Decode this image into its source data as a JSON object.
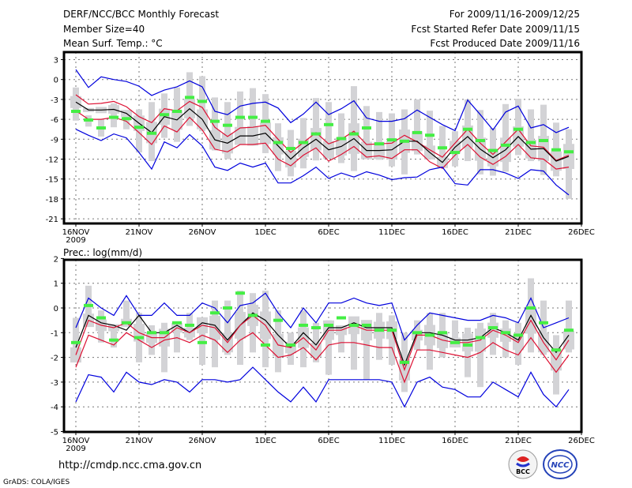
{
  "header": {
    "title": "DERF/NCC/BCC Monthly Forecast",
    "member_size": "Member Size=40",
    "variable": "Mean Surf. Temp.: °C",
    "period": "For 2009/11/16-2009/12/25",
    "started": "Fcst Started Refer Date 2009/11/15",
    "produced": "Fcst Produced Date 2009/11/16"
  },
  "footer": {
    "url": "http://cmdp.ncc.cma.gov.cn",
    "credit": "GrADS: COLA/IGES",
    "logo_left": "BCC",
    "logo_right": "NCC"
  },
  "colors": {
    "max_min": "#0000dd",
    "spread": "#dd1133",
    "mean": "#000000",
    "obs": "#44ee44",
    "box": "#d3d3d6",
    "grid": "#777777"
  },
  "chart_data": [
    {
      "type": "line",
      "title": "Mean Surf. Temp.: °C",
      "xlabel_year": "2009",
      "x_ticks": [
        "16NOV",
        "21NOV",
        "26NOV",
        "1DEC",
        "6DEC",
        "11DEC",
        "16DEC",
        "21DEC",
        "26DEC"
      ],
      "x_range_days": [
        0,
        40
      ],
      "y_ticks": [
        3,
        0,
        -3,
        -6,
        -9,
        -12,
        -15,
        -18,
        -21
      ],
      "ylim": [
        -22,
        4
      ],
      "grid": true,
      "series": [
        {
          "name": "max",
          "color": "blue",
          "values": [
            1.5,
            -1.2,
            0.4,
            0.0,
            -0.3,
            -1.0,
            -2.4,
            -1.6,
            -1.1,
            -0.2,
            -1.1,
            -4.8,
            -5.3,
            -4.0,
            -3.6,
            -3.4,
            -4.3,
            -6.5,
            -5.2,
            -3.4,
            -5.3,
            -4.4,
            -3.2,
            -5.8,
            -6.3,
            -6.3,
            -5.9,
            -4.6,
            -5.7,
            -6.8,
            -7.7,
            -3.1,
            -5.3,
            -7.6,
            -4.9,
            -4.0,
            -7.3,
            -6.8,
            -8.0,
            -7.2
          ]
        },
        {
          "name": "upper",
          "color": "red",
          "values": [
            -2.3,
            -3.7,
            -3.6,
            -3.3,
            -4.1,
            -5.6,
            -6.5,
            -4.4,
            -4.7,
            -3.3,
            -4.2,
            -7.2,
            -8.6,
            -7.3,
            -7.2,
            -6.9,
            -9.0,
            -11.0,
            -9.5,
            -8.0,
            -9.7,
            -9.0,
            -7.8,
            -9.8,
            -9.7,
            -9.6,
            -8.4,
            -9.4,
            -10.6,
            -11.7,
            -9.6,
            -7.5,
            -9.6,
            -11.3,
            -9.4,
            -7.5,
            -10.0,
            -10.2,
            -12.2,
            -11.4
          ]
        },
        {
          "name": "mean",
          "color": "black",
          "values": [
            -3.4,
            -4.6,
            -4.6,
            -4.5,
            -5.1,
            -6.6,
            -8.0,
            -5.6,
            -6.1,
            -4.4,
            -6.0,
            -9.1,
            -9.6,
            -8.5,
            -8.5,
            -8.1,
            -10.0,
            -12.0,
            -10.3,
            -9.0,
            -10.6,
            -10.1,
            -8.9,
            -10.7,
            -10.7,
            -10.6,
            -9.3,
            -9.3,
            -11.0,
            -12.5,
            -10.2,
            -8.6,
            -10.5,
            -11.8,
            -10.6,
            -8.6,
            -10.5,
            -10.4,
            -12.3,
            -11.6
          ]
        },
        {
          "name": "lower",
          "color": "red",
          "values": [
            -4.7,
            -6.0,
            -6.0,
            -5.7,
            -6.3,
            -8.0,
            -9.8,
            -7.0,
            -7.9,
            -5.7,
            -7.6,
            -10.5,
            -10.9,
            -9.8,
            -9.8,
            -9.6,
            -12.0,
            -13.0,
            -11.4,
            -10.3,
            -12.3,
            -11.3,
            -10.1,
            -11.7,
            -11.5,
            -11.9,
            -10.6,
            -10.6,
            -12.4,
            -13.4,
            -11.4,
            -9.8,
            -11.7,
            -12.8,
            -11.6,
            -9.8,
            -11.8,
            -12.0,
            -13.5,
            -13.2
          ]
        },
        {
          "name": "min",
          "color": "blue",
          "values": [
            -7.5,
            -8.4,
            -9.2,
            -8.2,
            -8.8,
            -11.0,
            -13.5,
            -9.4,
            -10.3,
            -8.3,
            -10.0,
            -13.2,
            -13.7,
            -12.6,
            -13.2,
            -12.6,
            -15.6,
            -15.6,
            -14.5,
            -13.2,
            -14.9,
            -14.1,
            -14.7,
            -13.9,
            -14.4,
            -15.1,
            -14.8,
            -14.7,
            -13.6,
            -13.2,
            -15.7,
            -15.9,
            -13.6,
            -13.6,
            -14.1,
            -14.9,
            -13.6,
            -13.8,
            -15.9,
            -17.4
          ]
        },
        {
          "name": "observed",
          "color": "green",
          "values": [
            -4.8,
            -6.1,
            -7.3,
            -5.7,
            -5.9,
            -7.2,
            -8.1,
            -5.3,
            -4.8,
            -2.7,
            -3.3,
            -6.3,
            -6.9,
            -5.7,
            -5.7,
            -6.3,
            -9.5,
            -10.4,
            -9.5,
            -8.2,
            -6.8,
            -8.9,
            -8.2,
            -7.3,
            -9.7,
            -9.1,
            -9.3,
            -8.0,
            -8.4,
            -10.3,
            -11.0,
            -7.5,
            -9.2,
            -10.7,
            -9.9,
            -7.5,
            -9.5,
            -9.2,
            -10.6,
            -10.9
          ]
        },
        {
          "name": "box_low",
          "color": "gray",
          "values": [
            -6.2,
            -7.1,
            -8.6,
            -7.2,
            -7.5,
            -11.0,
            -12.3,
            -8.8,
            -9.4,
            -7.0,
            -7.8,
            -10.7,
            -12.0,
            -9.3,
            -9.5,
            -11.1,
            -13.8,
            -14.6,
            -13.4,
            -12.2,
            -10.8,
            -12.6,
            -13.8,
            -11.3,
            -12.1,
            -13.1,
            -14.3,
            -11.3,
            -10.5,
            -11.7,
            -13.1,
            -12.3,
            -14.3,
            -14.5,
            -13.9,
            -11.4,
            -12.3,
            -14.4,
            -14.6,
            -18.0
          ]
        },
        {
          "name": "box_high",
          "color": "gray",
          "values": [
            -1.2,
            -5.4,
            -6.0,
            -3.6,
            -4.6,
            -4.5,
            -3.4,
            -2.1,
            -1.2,
            1.1,
            0.5,
            -2.7,
            -3.4,
            -1.8,
            -1.3,
            -2.2,
            -6.6,
            -7.6,
            -5.8,
            -2.8,
            -3.4,
            -5.1,
            -1.0,
            -4.0,
            -4.9,
            -5.1,
            -4.5,
            -3.0,
            -4.7,
            -7.0,
            -7.8,
            -3.0,
            -4.6,
            -7.3,
            -3.7,
            -2.9,
            -4.5,
            -3.8,
            -6.5,
            -7.5
          ]
        }
      ]
    },
    {
      "type": "line",
      "title": "Prec.: log(mm/d)",
      "xlabel_year": "2009",
      "x_ticks": [
        "16NOV",
        "21NOV",
        "26NOV",
        "1DEC",
        "6DEC",
        "11DEC",
        "16DEC",
        "21DEC",
        "26DEC"
      ],
      "x_range_days": [
        0,
        40
      ],
      "y_ticks": [
        2,
        1,
        0,
        -1,
        -2,
        -3,
        -4,
        -5
      ],
      "ylim": [
        -5,
        2
      ],
      "grid": true,
      "series": [
        {
          "name": "max",
          "color": "blue",
          "values": [
            -0.8,
            0.4,
            0.0,
            -0.3,
            0.5,
            -0.3,
            -0.3,
            0.2,
            -0.3,
            -0.3,
            0.2,
            0.0,
            -0.6,
            0.1,
            0.2,
            0.6,
            -0.2,
            -0.8,
            0.0,
            -0.6,
            0.2,
            0.2,
            0.4,
            0.2,
            0.1,
            0.2,
            -1.3,
            -0.7,
            -0.2,
            -0.3,
            -0.4,
            -0.5,
            -0.5,
            -0.3,
            -0.4,
            -0.6,
            0.4,
            -0.8,
            -0.6,
            -0.4
          ]
        },
        {
          "name": "upper",
          "color": "black",
          "values": [
            -1.6,
            -0.3,
            -0.6,
            -0.7,
            -0.9,
            -0.3,
            -1.0,
            -1.0,
            -0.7,
            -1.0,
            -0.6,
            -0.7,
            -1.3,
            -0.7,
            -0.2,
            -0.5,
            -1.1,
            -1.6,
            -1.0,
            -1.5,
            -0.8,
            -0.8,
            -0.6,
            -0.8,
            -0.8,
            -0.8,
            -2.3,
            -1.0,
            -1.0,
            -1.1,
            -1.3,
            -1.3,
            -1.2,
            -0.8,
            -1.0,
            -1.3,
            -0.3,
            -1.2,
            -1.8,
            -1.1
          ]
        },
        {
          "name": "mean",
          "color": "red",
          "values": [
            -1.9,
            -0.5,
            -0.7,
            -0.8,
            -0.6,
            -1.0,
            -1.2,
            -1.2,
            -0.8,
            -1.0,
            -0.7,
            -0.8,
            -1.4,
            -0.7,
            -0.3,
            -0.7,
            -1.5,
            -1.6,
            -1.2,
            -1.7,
            -0.9,
            -0.9,
            -0.7,
            -0.9,
            -0.9,
            -0.9,
            -2.5,
            -1.1,
            -1.1,
            -1.3,
            -1.4,
            -1.4,
            -1.3,
            -0.9,
            -1.1,
            -1.4,
            -0.5,
            -1.4,
            -2.1,
            -1.3
          ]
        },
        {
          "name": "lower",
          "color": "red",
          "values": [
            -2.4,
            -1.1,
            -1.3,
            -1.5,
            -1.0,
            -1.3,
            -1.6,
            -1.3,
            -1.2,
            -1.4,
            -1.1,
            -1.3,
            -1.8,
            -1.3,
            -1.0,
            -1.5,
            -2.0,
            -1.9,
            -1.6,
            -2.1,
            -1.5,
            -1.4,
            -1.4,
            -1.5,
            -1.6,
            -1.6,
            -3.0,
            -1.7,
            -1.7,
            -1.8,
            -1.9,
            -2.0,
            -1.8,
            -1.4,
            -1.7,
            -1.9,
            -1.2,
            -1.9,
            -2.6,
            -1.9
          ]
        },
        {
          "name": "min",
          "color": "blue",
          "values": [
            -3.8,
            -2.7,
            -2.8,
            -3.4,
            -2.6,
            -3.0,
            -3.1,
            -2.9,
            -3.0,
            -3.4,
            -2.9,
            -2.9,
            -3.0,
            -2.9,
            -2.4,
            -2.9,
            -3.4,
            -3.8,
            -3.2,
            -3.8,
            -2.9,
            -2.9,
            -2.9,
            -2.9,
            -2.9,
            -3.0,
            -4.0,
            -3.0,
            -2.8,
            -3.2,
            -3.3,
            -3.6,
            -3.6,
            -3.0,
            -3.3,
            -3.6,
            -2.6,
            -3.5,
            -4.0,
            -3.3
          ]
        },
        {
          "name": "observed",
          "color": "green",
          "values": [
            -1.4,
            0.1,
            -0.4,
            -1.3,
            -0.6,
            -1.2,
            -1.0,
            -1.0,
            -0.6,
            -0.7,
            -1.4,
            -0.2,
            0.0,
            0.6,
            -0.3,
            -1.5,
            -0.5,
            -1.5,
            -0.7,
            -0.8,
            -0.7,
            -0.4,
            -0.7,
            -0.7,
            -0.9,
            -0.9,
            -2.2,
            -1.0,
            -1.1,
            -1.0,
            -1.4,
            -1.5,
            -1.2,
            -0.8,
            -1.0,
            -1.1,
            0.0,
            -0.6,
            -1.7,
            -0.9
          ]
        },
        {
          "name": "box_low",
          "color": "gray",
          "values": [
            -2.1,
            -0.6,
            -1.4,
            -1.6,
            -0.6,
            -2.2,
            -1.9,
            -2.6,
            -1.8,
            -1.3,
            -2.3,
            -2.4,
            -1.9,
            -2.3,
            -1.8,
            -2.4,
            -2.6,
            -2.3,
            -2.4,
            -2.2,
            -2.7,
            -1.8,
            -2.5,
            -2.9,
            -2.1,
            -2.3,
            -3.4,
            -1.7,
            -2.5,
            -2.0,
            -1.6,
            -2.8,
            -3.2,
            -1.9,
            -2.0,
            -2.3,
            -1.8,
            -1.9,
            -3.5,
            -1.8
          ]
        },
        {
          "name": "box_high",
          "color": "gray",
          "values": [
            -0.4,
            0.9,
            -0.1,
            -0.8,
            0.3,
            -0.2,
            -0.7,
            -0.6,
            -0.7,
            -0.2,
            -0.5,
            0.3,
            0.3,
            0.7,
            0.6,
            0.7,
            -0.1,
            -1.0,
            -0.1,
            -0.6,
            -0.5,
            -0.7,
            -0.5,
            -0.6,
            -0.2,
            -0.3,
            -1.0,
            -0.5,
            -0.2,
            -0.2,
            -0.5,
            -0.8,
            -0.6,
            -0.2,
            -0.5,
            -0.6,
            1.2,
            0.3,
            -1.1,
            0.3
          ]
        }
      ]
    }
  ]
}
